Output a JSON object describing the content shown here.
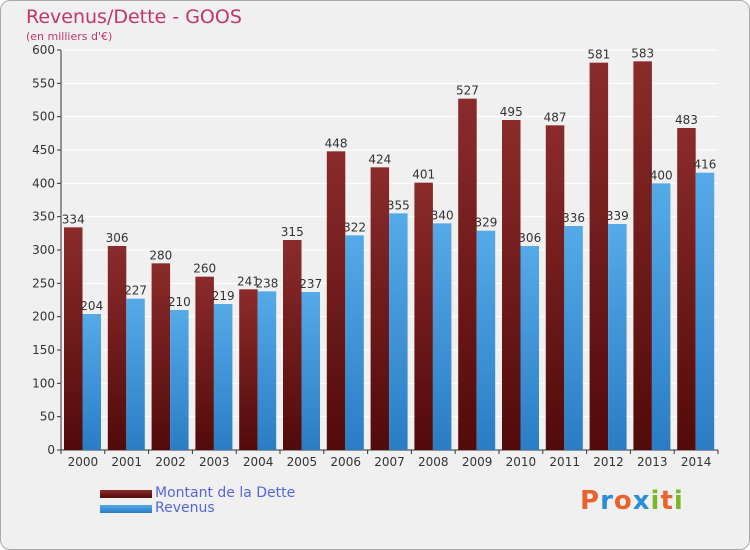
{
  "title": "Revenus/Dette - GOOS",
  "subtitle": "(en milliers d'€)",
  "colors": {
    "title": "#c23569",
    "dette_top": "#8b2b2b",
    "dette_bottom": "#520a0a",
    "revenus_top": "#55aae8",
    "revenus_bottom": "#2a7dc4",
    "legend_text": "#5566dd",
    "grid": "#ffffff",
    "plot_bg": "#f0f0f0"
  },
  "chart_data": {
    "type": "bar",
    "title": "Revenus/Dette - GOOS",
    "ylabel": "(en milliers d'€)",
    "xlabel": "",
    "ylim": [
      0,
      600
    ],
    "yticks": [
      0,
      50,
      100,
      150,
      200,
      250,
      300,
      350,
      400,
      450,
      500,
      550,
      600
    ],
    "grid": true,
    "categories": [
      "2000",
      "2001",
      "2002",
      "2003",
      "2004",
      "2005",
      "2006",
      "2007",
      "2008",
      "2009",
      "2010",
      "2011",
      "2012",
      "2013",
      "2014"
    ],
    "series": [
      {
        "name": "Montant de la Dette",
        "values": [
          334,
          306,
          280,
          260,
          241,
          315,
          448,
          424,
          401,
          527,
          495,
          487,
          581,
          583,
          483
        ]
      },
      {
        "name": "Revenus",
        "values": [
          204,
          227,
          210,
          219,
          238,
          237,
          322,
          355,
          340,
          329,
          306,
          336,
          339,
          400,
          416
        ]
      }
    ],
    "legend_position": "bottom-left"
  },
  "legend": {
    "items": [
      {
        "label": "Montant de la Dette"
      },
      {
        "label": "Revenus"
      }
    ]
  },
  "logo": {
    "text": "Proxiti",
    "letters": [
      "P",
      "r",
      "o",
      "x",
      "i",
      "t",
      "i"
    ],
    "letter_colors": [
      "#e8632e",
      "#2c8fd6",
      "#e8632e",
      "#2c8fd6",
      "#7ab82a",
      "#e8632e",
      "#7ab82a"
    ]
  }
}
